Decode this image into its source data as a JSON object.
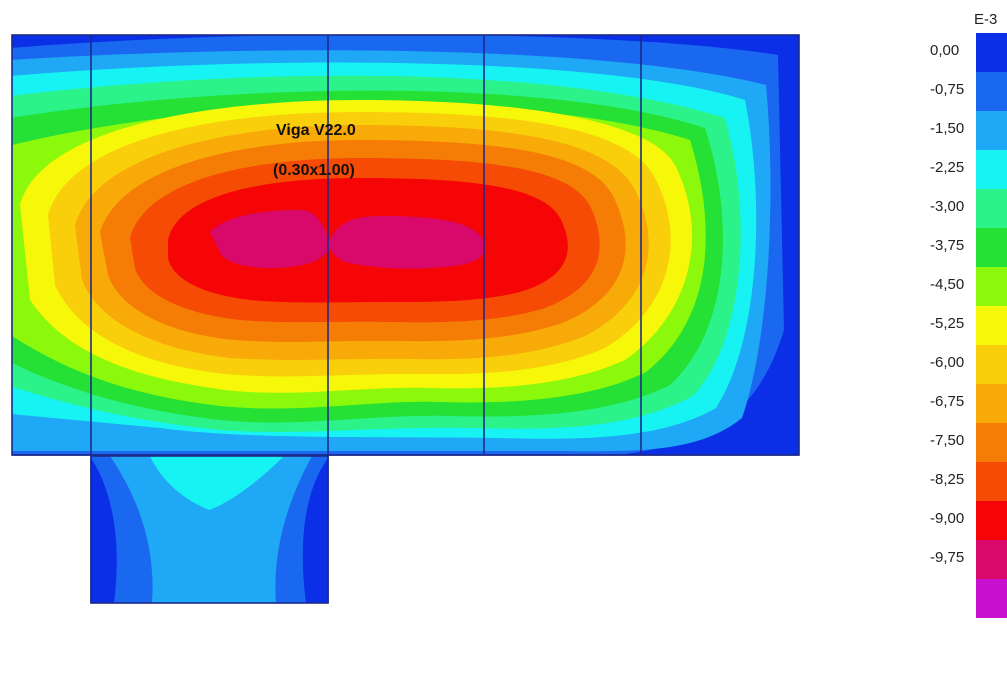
{
  "diagram": {
    "beam_label_line1": "Viga V22.0",
    "beam_label_line2": "(0.30x1.00)"
  },
  "legend": {
    "exponent": "E-3",
    "ticks": [
      "0,00",
      "-0,75",
      "-1,50",
      "-2,25",
      "-3,00",
      "-3,75",
      "-4,50",
      "-5,25",
      "-6,00",
      "-6,75",
      "-7,50",
      "-8,25",
      "-9,00",
      "-9,75"
    ],
    "colors": [
      "#0a2fe6",
      "#1a68f0",
      "#1fa8f5",
      "#17f3f3",
      "#2cf28a",
      "#25e035",
      "#8cf80b",
      "#f7f70a",
      "#f8cf0a",
      "#f8aa08",
      "#f57d05",
      "#f54b05",
      "#f50505",
      "#d9096b",
      "#c90fcf"
    ]
  }
}
